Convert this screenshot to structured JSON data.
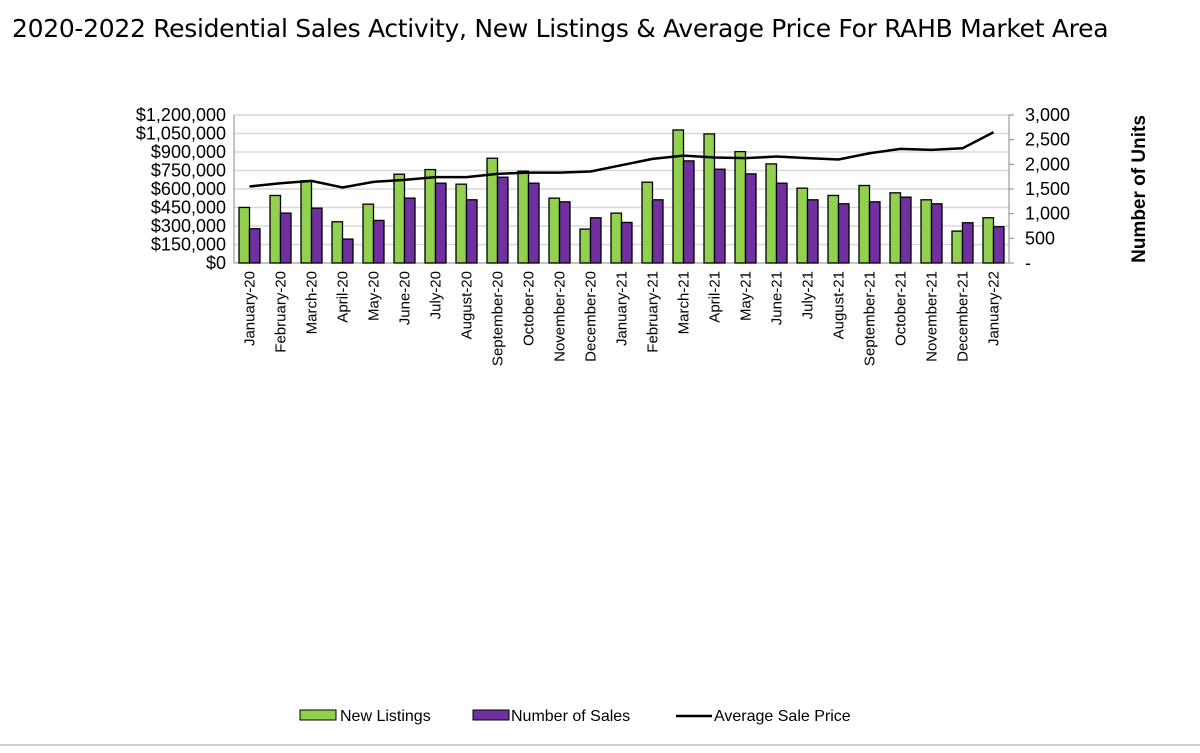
{
  "chart_data": {
    "type": "bar",
    "title": "2020-2022 Residential Sales Activity, New Listings & Average Price For RAHB Market Area",
    "ylabel_right": "Number of Units",
    "ylabel_left": "",
    "categories": [
      "January-20",
      "February-20",
      "March-20",
      "April-20",
      "May-20",
      "June-20",
      "July-20",
      "August-20",
      "September-20",
      "October-20",
      "November-20",
      "December-20",
      "January-21",
      "February-21",
      "March-21",
      "April-21",
      "May-21",
      "June-21",
      "July-21",
      "August-21",
      "September-21",
      "October-21",
      "November-21",
      "December-21",
      "January-22"
    ],
    "left_axis": {
      "ylim": [
        0,
        1200000
      ],
      "ticks": [
        "$0",
        "$150,000",
        "$300,000",
        "$450,000",
        "$600,000",
        "$750,000",
        "$900,000",
        "$1,050,000",
        "$1,200,000"
      ]
    },
    "right_axis": {
      "ylim": [
        0,
        3000
      ],
      "ticks": [
        "-",
        "500",
        "1,000",
        "1,500",
        "2,000",
        "2,500",
        "3,000"
      ]
    },
    "grid": true,
    "legend_position": "bottom",
    "series": [
      {
        "name": "New Listings",
        "type": "bar",
        "axis": "right",
        "color": "#92d050",
        "values": [
          1126,
          1369,
          1665,
          836,
          1193,
          1800,
          1894,
          1598,
          2124,
          1861,
          1315,
          688,
          1011,
          1638,
          2697,
          2616,
          2258,
          2009,
          1517,
          1369,
          1571,
          1422,
          1281,
          647,
          917
        ]
      },
      {
        "name": "Number of Sales",
        "type": "bar",
        "axis": "right",
        "color": "#7030a0",
        "values": [
          694,
          1011,
          1112,
          485,
          863,
          1315,
          1618,
          1281,
          1739,
          1618,
          1240,
          917,
          822,
          1281,
          2070,
          1901,
          1807,
          1618,
          1281,
          1200,
          1240,
          1335,
          1200,
          816,
          735
        ]
      },
      {
        "name": "Average Sale Price",
        "type": "line",
        "axis": "left",
        "color": "#000000",
        "values": [
          620000,
          647000,
          666000,
          612000,
          658000,
          674000,
          696000,
          696000,
          723000,
          733000,
          733000,
          742000,
          793000,
          844000,
          871000,
          855000,
          850000,
          863000,
          850000,
          839000,
          890000,
          925000,
          917000,
          930000,
          1060000
        ]
      }
    ]
  }
}
